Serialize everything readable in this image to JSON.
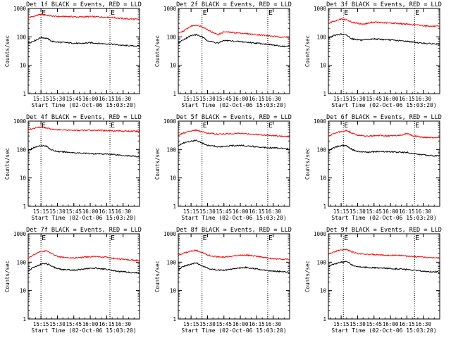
{
  "chart_data": [
    {
      "type": "line",
      "title": "Det 1f BLACK = Events, RED = LLD",
      "xlabel": "Start Time (02-Oct-06 15:03:20)",
      "ylabel": "Counts/sec",
      "yscale": "log",
      "ylim": [
        1,
        1000
      ],
      "xlim": [
        "15:03:20",
        "16:45:00"
      ],
      "xticks": [
        "15:15",
        "15:30",
        "15:45",
        "16:00",
        "16:15",
        "16:30"
      ],
      "yticks": [
        "1",
        "10",
        "100",
        "1000"
      ],
      "markers": [
        {
          "label": "E",
          "x": "15:15:00"
        },
        {
          "label": "E",
          "x": "16:18:00"
        }
      ],
      "grid": false,
      "series": [
        {
          "color": "#ff0000",
          "x": [
            "15:03:20",
            "15:08:00",
            "15:15:00",
            "15:20:00",
            "15:25:00",
            "15:30:00",
            "15:40:00",
            "15:50:00",
            "16:00:00",
            "16:10:00",
            "16:20:00",
            "16:30:00",
            "16:40:00",
            "16:45:00"
          ],
          "values": [
            480,
            520,
            620,
            580,
            540,
            520,
            520,
            500,
            520,
            500,
            480,
            440,
            420,
            410
          ]
        },
        {
          "color": "#000000",
          "x": [
            "15:03:20",
            "15:08:00",
            "15:15:00",
            "15:20:00",
            "15:25:00",
            "15:30:00",
            "15:40:00",
            "15:50:00",
            "16:00:00",
            "16:10:00",
            "16:20:00",
            "16:30:00",
            "16:40:00",
            "16:45:00"
          ],
          "values": [
            60,
            70,
            95,
            90,
            70,
            65,
            62,
            58,
            62,
            58,
            55,
            50,
            48,
            47
          ]
        }
      ]
    },
    {
      "type": "line",
      "title": "Det 2f BLACK = Events, RED = LLD",
      "xlabel": "Start Time (02-Oct-06 15:03:20)",
      "ylabel": "Counts/sec",
      "yscale": "log",
      "ylim": [
        1,
        1000
      ],
      "xlim": [
        "15:03:20",
        "16:45:00"
      ],
      "xticks": [
        "15:15",
        "15:30",
        "15:45",
        "16:00",
        "16:15",
        "16:30"
      ],
      "yticks": [
        "1",
        "10",
        "100",
        "1000"
      ],
      "markers": [
        {
          "label": "E",
          "x": "15:25:00"
        },
        {
          "label": "E",
          "x": "16:25:00"
        }
      ],
      "grid": false,
      "series": [
        {
          "color": "#ff0000",
          "x": [
            "15:03:20",
            "15:08:00",
            "15:15:00",
            "15:20:00",
            "15:25:00",
            "15:30:00",
            "15:35:00",
            "15:40:00",
            "15:45:00",
            "15:55:00",
            "16:05:00",
            "16:15:00",
            "16:25:00",
            "16:35:00",
            "16:45:00"
          ],
          "values": [
            130,
            160,
            240,
            260,
            230,
            180,
            140,
            120,
            150,
            140,
            130,
            120,
            110,
            100,
            95
          ]
        },
        {
          "color": "#000000",
          "x": [
            "15:03:20",
            "15:08:00",
            "15:15:00",
            "15:20:00",
            "15:25:00",
            "15:30:00",
            "15:35:00",
            "15:40:00",
            "15:45:00",
            "15:55:00",
            "16:05:00",
            "16:15:00",
            "16:25:00",
            "16:35:00",
            "16:45:00"
          ],
          "values": [
            60,
            80,
            110,
            120,
            100,
            75,
            65,
            60,
            75,
            70,
            65,
            60,
            55,
            48,
            45
          ]
        }
      ]
    },
    {
      "type": "line",
      "title": "Det 3f BLACK = Events, RED = LLD",
      "xlabel": "Start Time (02-Oct-06 15:03:20)",
      "ylabel": "Counts/sec",
      "yscale": "log",
      "ylim": [
        1,
        1000
      ],
      "xlim": [
        "15:03:20",
        "16:45:00"
      ],
      "xticks": [
        "15:15",
        "15:30",
        "15:45",
        "16:00",
        "16:15",
        "16:30"
      ],
      "yticks": [
        "1",
        "10",
        "100",
        "1000"
      ],
      "markers": [
        {
          "label": "E",
          "x": "15:17:00"
        },
        {
          "label": "E",
          "x": "16:22:00"
        }
      ],
      "grid": false,
      "series": [
        {
          "color": "#ff0000",
          "x": [
            "15:03:20",
            "15:08:00",
            "15:15:00",
            "15:20:00",
            "15:25:00",
            "15:30:00",
            "15:35:00",
            "15:45:00",
            "15:55:00",
            "16:05:00",
            "16:15:00",
            "16:25:00",
            "16:35:00",
            "16:45:00"
          ],
          "values": [
            290,
            360,
            420,
            400,
            330,
            300,
            280,
            330,
            310,
            300,
            280,
            260,
            240,
            230
          ]
        },
        {
          "color": "#000000",
          "x": [
            "15:03:20",
            "15:08:00",
            "15:15:00",
            "15:20:00",
            "15:25:00",
            "15:30:00",
            "15:35:00",
            "15:45:00",
            "15:55:00",
            "16:05:00",
            "16:15:00",
            "16:25:00",
            "16:35:00",
            "16:45:00"
          ],
          "values": [
            90,
            110,
            125,
            115,
            85,
            80,
            75,
            85,
            80,
            75,
            70,
            62,
            58,
            55
          ]
        }
      ]
    },
    {
      "type": "line",
      "title": "Det 4f BLACK = Events, RED = LLD",
      "xlabel": "Start Time (02-Oct-06 15:03:20)",
      "ylabel": "Counts/sec",
      "yscale": "log",
      "ylim": [
        1,
        1000
      ],
      "xlim": [
        "15:03:20",
        "16:45:00"
      ],
      "xticks": [
        "15:15",
        "15:30",
        "15:45",
        "16:00",
        "16:15",
        "16:30"
      ],
      "yticks": [
        "1",
        "10",
        "100",
        "1000"
      ],
      "markers": [
        {
          "label": "E",
          "x": "15:15:00"
        },
        {
          "label": "E",
          "x": "16:18:00"
        }
      ],
      "grid": false,
      "series": [
        {
          "color": "#ff0000",
          "x": [
            "15:03:20",
            "15:08:00",
            "15:15:00",
            "15:20:00",
            "15:25:00",
            "15:30:00",
            "15:40:00",
            "15:50:00",
            "16:00:00",
            "16:10:00",
            "16:20:00",
            "16:30:00",
            "16:40:00",
            "16:45:00"
          ],
          "values": [
            500,
            560,
            620,
            580,
            520,
            500,
            480,
            470,
            480,
            470,
            460,
            450,
            440,
            430
          ]
        },
        {
          "color": "#000000",
          "x": [
            "15:03:20",
            "15:08:00",
            "15:15:00",
            "15:20:00",
            "15:25:00",
            "15:30:00",
            "15:40:00",
            "15:50:00",
            "16:00:00",
            "16:10:00",
            "16:20:00",
            "16:30:00",
            "16:40:00",
            "16:45:00"
          ],
          "values": [
            90,
            115,
            140,
            130,
            95,
            85,
            80,
            75,
            72,
            70,
            68,
            62,
            58,
            55
          ]
        }
      ]
    },
    {
      "type": "line",
      "title": "Det 5f BLACK = Events, RED = LLD",
      "xlabel": "Start Time (02-Oct-06 15:03:20)",
      "ylabel": "Counts/sec",
      "yscale": "log",
      "ylim": [
        1,
        1000
      ],
      "xlim": [
        "15:03:20",
        "16:45:00"
      ],
      "xticks": [
        "15:15",
        "15:30",
        "15:45",
        "16:00",
        "16:15",
        "16:30"
      ],
      "yticks": [
        "1",
        "10",
        "100",
        "1000"
      ],
      "markers": [
        {
          "label": "E",
          "x": "15:25:00"
        },
        {
          "label": "E",
          "x": "16:25:00"
        }
      ],
      "grid": false,
      "series": [
        {
          "color": "#ff0000",
          "x": [
            "15:03:20",
            "15:08:00",
            "15:15:00",
            "15:20:00",
            "15:25:00",
            "15:30:00",
            "15:40:00",
            "15:50:00",
            "16:00:00",
            "16:10:00",
            "16:20:00",
            "16:30:00",
            "16:40:00",
            "16:45:00"
          ],
          "values": [
            320,
            380,
            450,
            480,
            420,
            380,
            350,
            360,
            370,
            350,
            330,
            310,
            290,
            280
          ]
        },
        {
          "color": "#000000",
          "x": [
            "15:03:20",
            "15:08:00",
            "15:15:00",
            "15:20:00",
            "15:25:00",
            "15:30:00",
            "15:40:00",
            "15:50:00",
            "16:00:00",
            "16:10:00",
            "16:20:00",
            "16:30:00",
            "16:40:00",
            "16:45:00"
          ],
          "values": [
            140,
            170,
            200,
            210,
            170,
            140,
            125,
            135,
            140,
            130,
            120,
            115,
            110,
            105
          ]
        }
      ]
    },
    {
      "type": "line",
      "title": "Det 6f BLACK = Events, RED = LLD",
      "xlabel": "Start Time (02-Oct-06 15:03:20)",
      "ylabel": "Counts/sec",
      "yscale": "log",
      "ylim": [
        1,
        1000
      ],
      "xlim": [
        "15:03:20",
        "16:45:00"
      ],
      "xticks": [
        "15:15",
        "15:30",
        "15:45",
        "16:00",
        "16:15",
        "16:30"
      ],
      "yticks": [
        "1",
        "10",
        "100",
        "1000"
      ],
      "markers": [
        {
          "label": "E",
          "x": "15:17:00"
        },
        {
          "label": "E",
          "x": "16:22:00"
        }
      ],
      "grid": false,
      "series": [
        {
          "color": "#ff0000",
          "x": [
            "15:03:20",
            "15:08:00",
            "15:15:00",
            "15:20:00",
            "15:25:00",
            "15:30:00",
            "15:40:00",
            "15:50:00",
            "16:00:00",
            "16:10:00",
            "16:15:00",
            "16:20:00",
            "16:30:00",
            "16:40:00",
            "16:45:00"
          ],
          "values": [
            300,
            360,
            430,
            460,
            380,
            320,
            300,
            310,
            300,
            320,
            370,
            310,
            270,
            260,
            260
          ]
        },
        {
          "color": "#000000",
          "x": [
            "15:03:20",
            "15:08:00",
            "15:15:00",
            "15:20:00",
            "15:25:00",
            "15:30:00",
            "15:40:00",
            "15:50:00",
            "16:00:00",
            "16:10:00",
            "16:15:00",
            "16:20:00",
            "16:30:00",
            "16:40:00",
            "16:45:00"
          ],
          "values": [
            90,
            115,
            140,
            135,
            100,
            85,
            80,
            85,
            82,
            80,
            80,
            72,
            65,
            60,
            60
          ]
        }
      ]
    },
    {
      "type": "line",
      "title": "Det 7f BLACK = Events, RED = LLD",
      "xlabel": "Start Time (02-Oct-06 15:03:20)",
      "ylabel": "Counts/sec",
      "yscale": "log",
      "ylim": [
        1,
        1000
      ],
      "xlim": [
        "15:03:20",
        "16:45:00"
      ],
      "xticks": [
        "15:15",
        "15:30",
        "15:45",
        "16:00",
        "16:15",
        "16:30"
      ],
      "yticks": [
        "1",
        "10",
        "100",
        "1000"
      ],
      "markers": [
        {
          "label": "E",
          "x": "15:15:00"
        },
        {
          "label": "E",
          "x": "16:18:00"
        }
      ],
      "grid": false,
      "series": [
        {
          "color": "#ff0000",
          "x": [
            "15:03:20",
            "15:08:00",
            "15:15:00",
            "15:20:00",
            "15:25:00",
            "15:30:00",
            "15:35:00",
            "15:45:00",
            "15:55:00",
            "16:05:00",
            "16:15:00",
            "16:25:00",
            "16:35:00",
            "16:45:00"
          ],
          "values": [
            140,
            180,
            240,
            250,
            200,
            160,
            150,
            140,
            150,
            160,
            150,
            130,
            120,
            115
          ]
        },
        {
          "color": "#000000",
          "x": [
            "15:03:20",
            "15:08:00",
            "15:15:00",
            "15:20:00",
            "15:25:00",
            "15:30:00",
            "15:35:00",
            "15:45:00",
            "15:55:00",
            "16:05:00",
            "16:15:00",
            "16:25:00",
            "16:35:00",
            "16:45:00"
          ],
          "values": [
            50,
            65,
            85,
            90,
            70,
            60,
            55,
            52,
            58,
            62,
            56,
            48,
            44,
            42
          ]
        }
      ]
    },
    {
      "type": "line",
      "title": "Det 8f BLACK = Events, RED = LLD",
      "xlabel": "Start Time (02-Oct-06 15:03:20)",
      "ylabel": "Counts/sec",
      "yscale": "log",
      "ylim": [
        1,
        1000
      ],
      "xlim": [
        "15:03:20",
        "16:45:00"
      ],
      "xticks": [
        "15:15",
        "15:30",
        "15:45",
        "16:00",
        "16:15",
        "16:30"
      ],
      "yticks": [
        "1",
        "10",
        "100",
        "1000"
      ],
      "markers": [
        {
          "label": "E",
          "x": "15:25:00"
        },
        {
          "label": "E",
          "x": "16:25:00"
        }
      ],
      "grid": false,
      "series": [
        {
          "color": "#ff0000",
          "x": [
            "15:03:20",
            "15:08:00",
            "15:15:00",
            "15:20:00",
            "15:25:00",
            "15:30:00",
            "15:35:00",
            "15:45:00",
            "15:55:00",
            "16:05:00",
            "16:15:00",
            "16:25:00",
            "16:35:00",
            "16:45:00"
          ],
          "values": [
            170,
            210,
            250,
            260,
            220,
            180,
            160,
            150,
            170,
            180,
            160,
            140,
            130,
            125
          ]
        },
        {
          "color": "#000000",
          "x": [
            "15:03:20",
            "15:08:00",
            "15:15:00",
            "15:20:00",
            "15:25:00",
            "15:30:00",
            "15:35:00",
            "15:45:00",
            "15:55:00",
            "16:05:00",
            "16:15:00",
            "16:25:00",
            "16:35:00",
            "16:45:00"
          ],
          "values": [
            55,
            70,
            85,
            95,
            75,
            62,
            55,
            52,
            60,
            65,
            58,
            50,
            47,
            45
          ]
        }
      ]
    },
    {
      "type": "line",
      "title": "Det 9f BLACK = Events, RED = LLD",
      "xlabel": "Start Time (02-Oct-06 15:03:20)",
      "ylabel": "Counts/sec",
      "yscale": "log",
      "ylim": [
        1,
        1000
      ],
      "xlim": [
        "15:03:20",
        "16:45:00"
      ],
      "xticks": [
        "15:15",
        "15:30",
        "15:45",
        "16:00",
        "16:15",
        "16:30"
      ],
      "yticks": [
        "1",
        "10",
        "100",
        "1000"
      ],
      "markers": [
        {
          "label": "E",
          "x": "15:17:00"
        },
        {
          "label": "E",
          "x": "16:22:00"
        }
      ],
      "grid": false,
      "series": [
        {
          "color": "#ff0000",
          "x": [
            "15:03:20",
            "15:08:00",
            "15:15:00",
            "15:20:00",
            "15:25:00",
            "15:30:00",
            "15:40:00",
            "15:50:00",
            "16:00:00",
            "16:10:00",
            "16:20:00",
            "16:30:00",
            "16:40:00",
            "16:45:00"
          ],
          "values": [
            190,
            230,
            270,
            280,
            230,
            200,
            190,
            180,
            175,
            170,
            160,
            150,
            145,
            140
          ]
        },
        {
          "color": "#000000",
          "x": [
            "15:03:20",
            "15:08:00",
            "15:15:00",
            "15:20:00",
            "15:25:00",
            "15:30:00",
            "15:40:00",
            "15:50:00",
            "16:00:00",
            "16:10:00",
            "16:20:00",
            "16:30:00",
            "16:40:00",
            "16:45:00"
          ],
          "values": [
            70,
            85,
            100,
            105,
            80,
            70,
            65,
            62,
            60,
            58,
            52,
            48,
            46,
            45
          ]
        }
      ]
    }
  ]
}
